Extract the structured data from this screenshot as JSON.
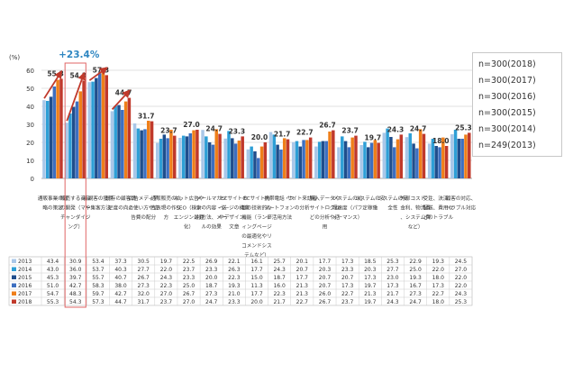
{
  "chart_data": {
    "type": "bar",
    "y_unit": "(%)",
    "ylim": [
      0,
      60
    ],
    "yticks": [
      0,
      10,
      20,
      30,
      40,
      50,
      60
    ],
    "categories": [
      "通販事業の戦略の策定",
      "販売する商品の開発（マーチャンダイジング）",
      "新規客の獲得や集客方法",
      "既存の顧客満足度の向上",
      "広告メディアの使い方や広告費の配分",
      "通販販売の広告表現の作り方",
      "ネット広告やSEO（検索エンジン最適化）",
      "メールマガジンの内容・送付方法、メールの効果",
      "ECサイトのページの構造やデザイン、文章",
      "ECサイト内部の技術的な機能（ランディングページの最適化やリコメンドシステムなど）",
      "携帯電話・スマートフォンの活用方法",
      "サイト来訪者の分析",
      "購入データやサイトログなどの分析や活用",
      "システムの処理速度（パフォーマンス）",
      "システムの安定稼働",
      "システムの安全性",
      "外部コスト（金利、物流費、システム費など）",
      "受注、決済、配送、費用などのトラブル",
      "顧客の対応、トラブル対応"
    ],
    "series": [
      {
        "name": "2013",
        "color": "#a9c7e8",
        "values": [
          43.4,
          30.9,
          53.4,
          37.3,
          30.5,
          19.7,
          22.5,
          26.9,
          22.1,
          16.1,
          25.7,
          20.1,
          17.7,
          17.3,
          18.5,
          25.3,
          22.9,
          19.3,
          24.5
        ]
      },
      {
        "name": "2014",
        "color": "#2e9fd6",
        "values": [
          43.0,
          36.0,
          53.7,
          40.3,
          27.7,
          22.0,
          23.7,
          23.3,
          26.3,
          17.7,
          24.3,
          20.7,
          20.3,
          23.3,
          20.3,
          27.7,
          25.0,
          22.0,
          27.0
        ]
      },
      {
        "name": "2015",
        "color": "#1f4e8c",
        "values": [
          45.3,
          39.7,
          55.7,
          40.7,
          26.7,
          24.3,
          23.3,
          20.0,
          22.3,
          15.0,
          18.7,
          17.7,
          20.7,
          20.7,
          17.3,
          23.0,
          19.3,
          18.0,
          22.0
        ]
      },
      {
        "name": "2016",
        "color": "#3d6fc0",
        "values": [
          51.0,
          42.7,
          58.3,
          38.0,
          27.3,
          22.3,
          25.0,
          18.7,
          19.3,
          11.3,
          16.0,
          21.3,
          20.7,
          17.3,
          19.7,
          17.3,
          16.7,
          17.3,
          22.0
        ]
      },
      {
        "name": "2017",
        "color": "#ef7f1a",
        "values": [
          54.7,
          48.3,
          59.7,
          42.7,
          32.0,
          27.0,
          26.7,
          27.3,
          21.0,
          17.7,
          22.3,
          21.3,
          26.0,
          22.7,
          21.3,
          21.7,
          27.3,
          22.7,
          24.3
        ]
      },
      {
        "name": "2018",
        "color": "#c0392b",
        "values": [
          55.3,
          54.3,
          57.3,
          44.7,
          31.7,
          23.7,
          27.0,
          24.7,
          23.3,
          20.0,
          21.7,
          22.7,
          26.7,
          23.7,
          19.7,
          24.3,
          24.7,
          18.0,
          25.3
        ]
      }
    ],
    "data_labels_2018": [
      "55.3",
      "54.3",
      "57.3",
      "44.7",
      "31.7",
      "23.7",
      "27.0",
      "24.7",
      "23.3",
      "20.0",
      "21.7",
      "22.7",
      "26.7",
      "23.7",
      "19.7",
      "24.3",
      "24.7",
      "18.0",
      "25.3"
    ],
    "annotation": "+23.4%",
    "highlight_category_index": 1
  },
  "legend": [
    "n=300(2018)",
    "n=300(2017)",
    "n=300(2016)",
    "n=300(2015)",
    "n=300(2014)",
    "n=249(2013)"
  ],
  "colors": {
    "arrow": "#c0392b",
    "annotation": "#2e86c1",
    "highlight_box": "#e06666",
    "grid": "#d9d9d9"
  }
}
